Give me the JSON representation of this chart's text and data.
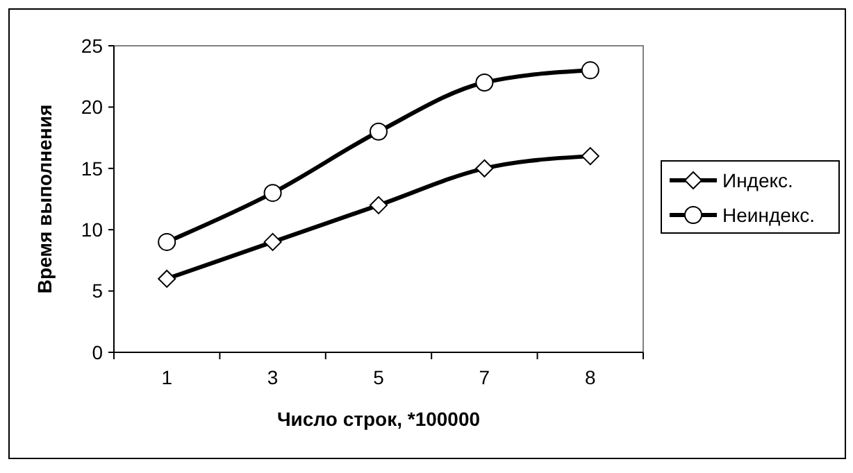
{
  "chart_data": {
    "type": "line",
    "xlabel": "Число строк, *100000",
    "ylabel": "Время выполнения",
    "categories": [
      "1",
      "3",
      "5",
      "7",
      "8"
    ],
    "series": [
      {
        "name": "Индекс.",
        "color": "#000000",
        "marker": "diamond",
        "values": [
          6,
          9,
          12,
          15,
          16
        ]
      },
      {
        "name": "Неиндекс.",
        "color": "#000000",
        "marker": "circle",
        "values": [
          9,
          13,
          18,
          22,
          23
        ]
      }
    ],
    "ylim": [
      0,
      25
    ],
    "yticks": [
      0,
      5,
      10,
      15,
      20,
      25
    ],
    "grid": false,
    "legend": "right",
    "line_style": "solid"
  }
}
